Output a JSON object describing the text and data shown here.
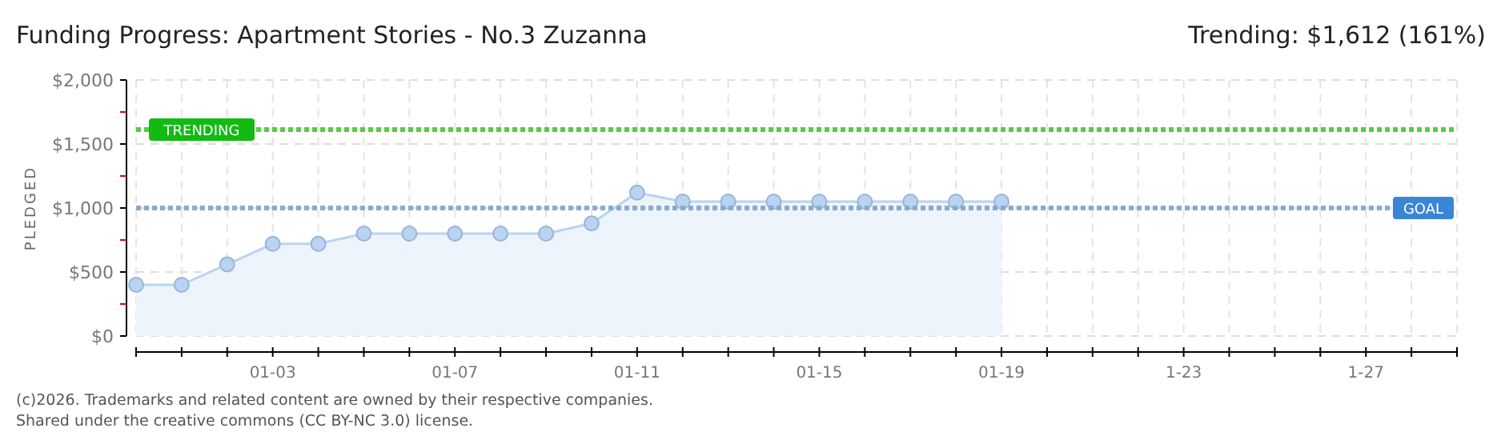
{
  "chart_data": {
    "type": "area",
    "title": "Funding Progress: Apartment Stories - No.3 Zuzanna",
    "subtitle": "Trending: $1,612 (161%)",
    "ylabel": "PLEDGED",
    "categories": [
      null,
      null,
      null,
      "01-03",
      null,
      null,
      null,
      "01-07",
      null,
      null,
      null,
      "01-11",
      null,
      null,
      null,
      "01-15",
      null,
      null,
      null,
      "01-19",
      null,
      null,
      null,
      "1-23",
      null,
      null,
      null,
      "1-27",
      null,
      null
    ],
    "series": [
      {
        "color": "#b8d4f2",
        "values": [
          400,
          400,
          560,
          720,
          720,
          800,
          800,
          800,
          800,
          800,
          880,
          1120,
          1050,
          1050,
          1050,
          1050,
          1050,
          1050,
          1050,
          1050,
          null,
          null,
          null,
          null,
          null,
          null,
          null,
          null,
          null,
          null
        ]
      }
    ],
    "ylim": [
      0,
      2000
    ],
    "yticks": [
      {
        "value": 0,
        "label": "$0"
      },
      {
        "value": 250,
        "label": null
      },
      {
        "value": 500,
        "label": "$500"
      },
      {
        "value": 750,
        "label": null
      },
      {
        "value": 1000,
        "label": "$1,000"
      },
      {
        "value": 1250,
        "label": null
      },
      {
        "value": 1500,
        "label": "$1,500"
      },
      {
        "value": 1750,
        "label": null
      },
      {
        "value": 2000,
        "label": "$2,000"
      }
    ],
    "grid": true,
    "marker": "circle",
    "ref_lines": [
      {
        "axis": "y",
        "value": 1612,
        "label": "TRENDING",
        "color": "#55cc44",
        "line_style": "dotted"
      },
      {
        "axis": "y",
        "value": 1000,
        "label": "GOAL",
        "color": "#8aaad0",
        "line_style": "dotted"
      }
    ],
    "annotations": [
      "(c)2026. Trademarks and related content are owned by their respective companies.",
      "Shared under the creative commons (CC BY-NC 3.0) license."
    ]
  }
}
